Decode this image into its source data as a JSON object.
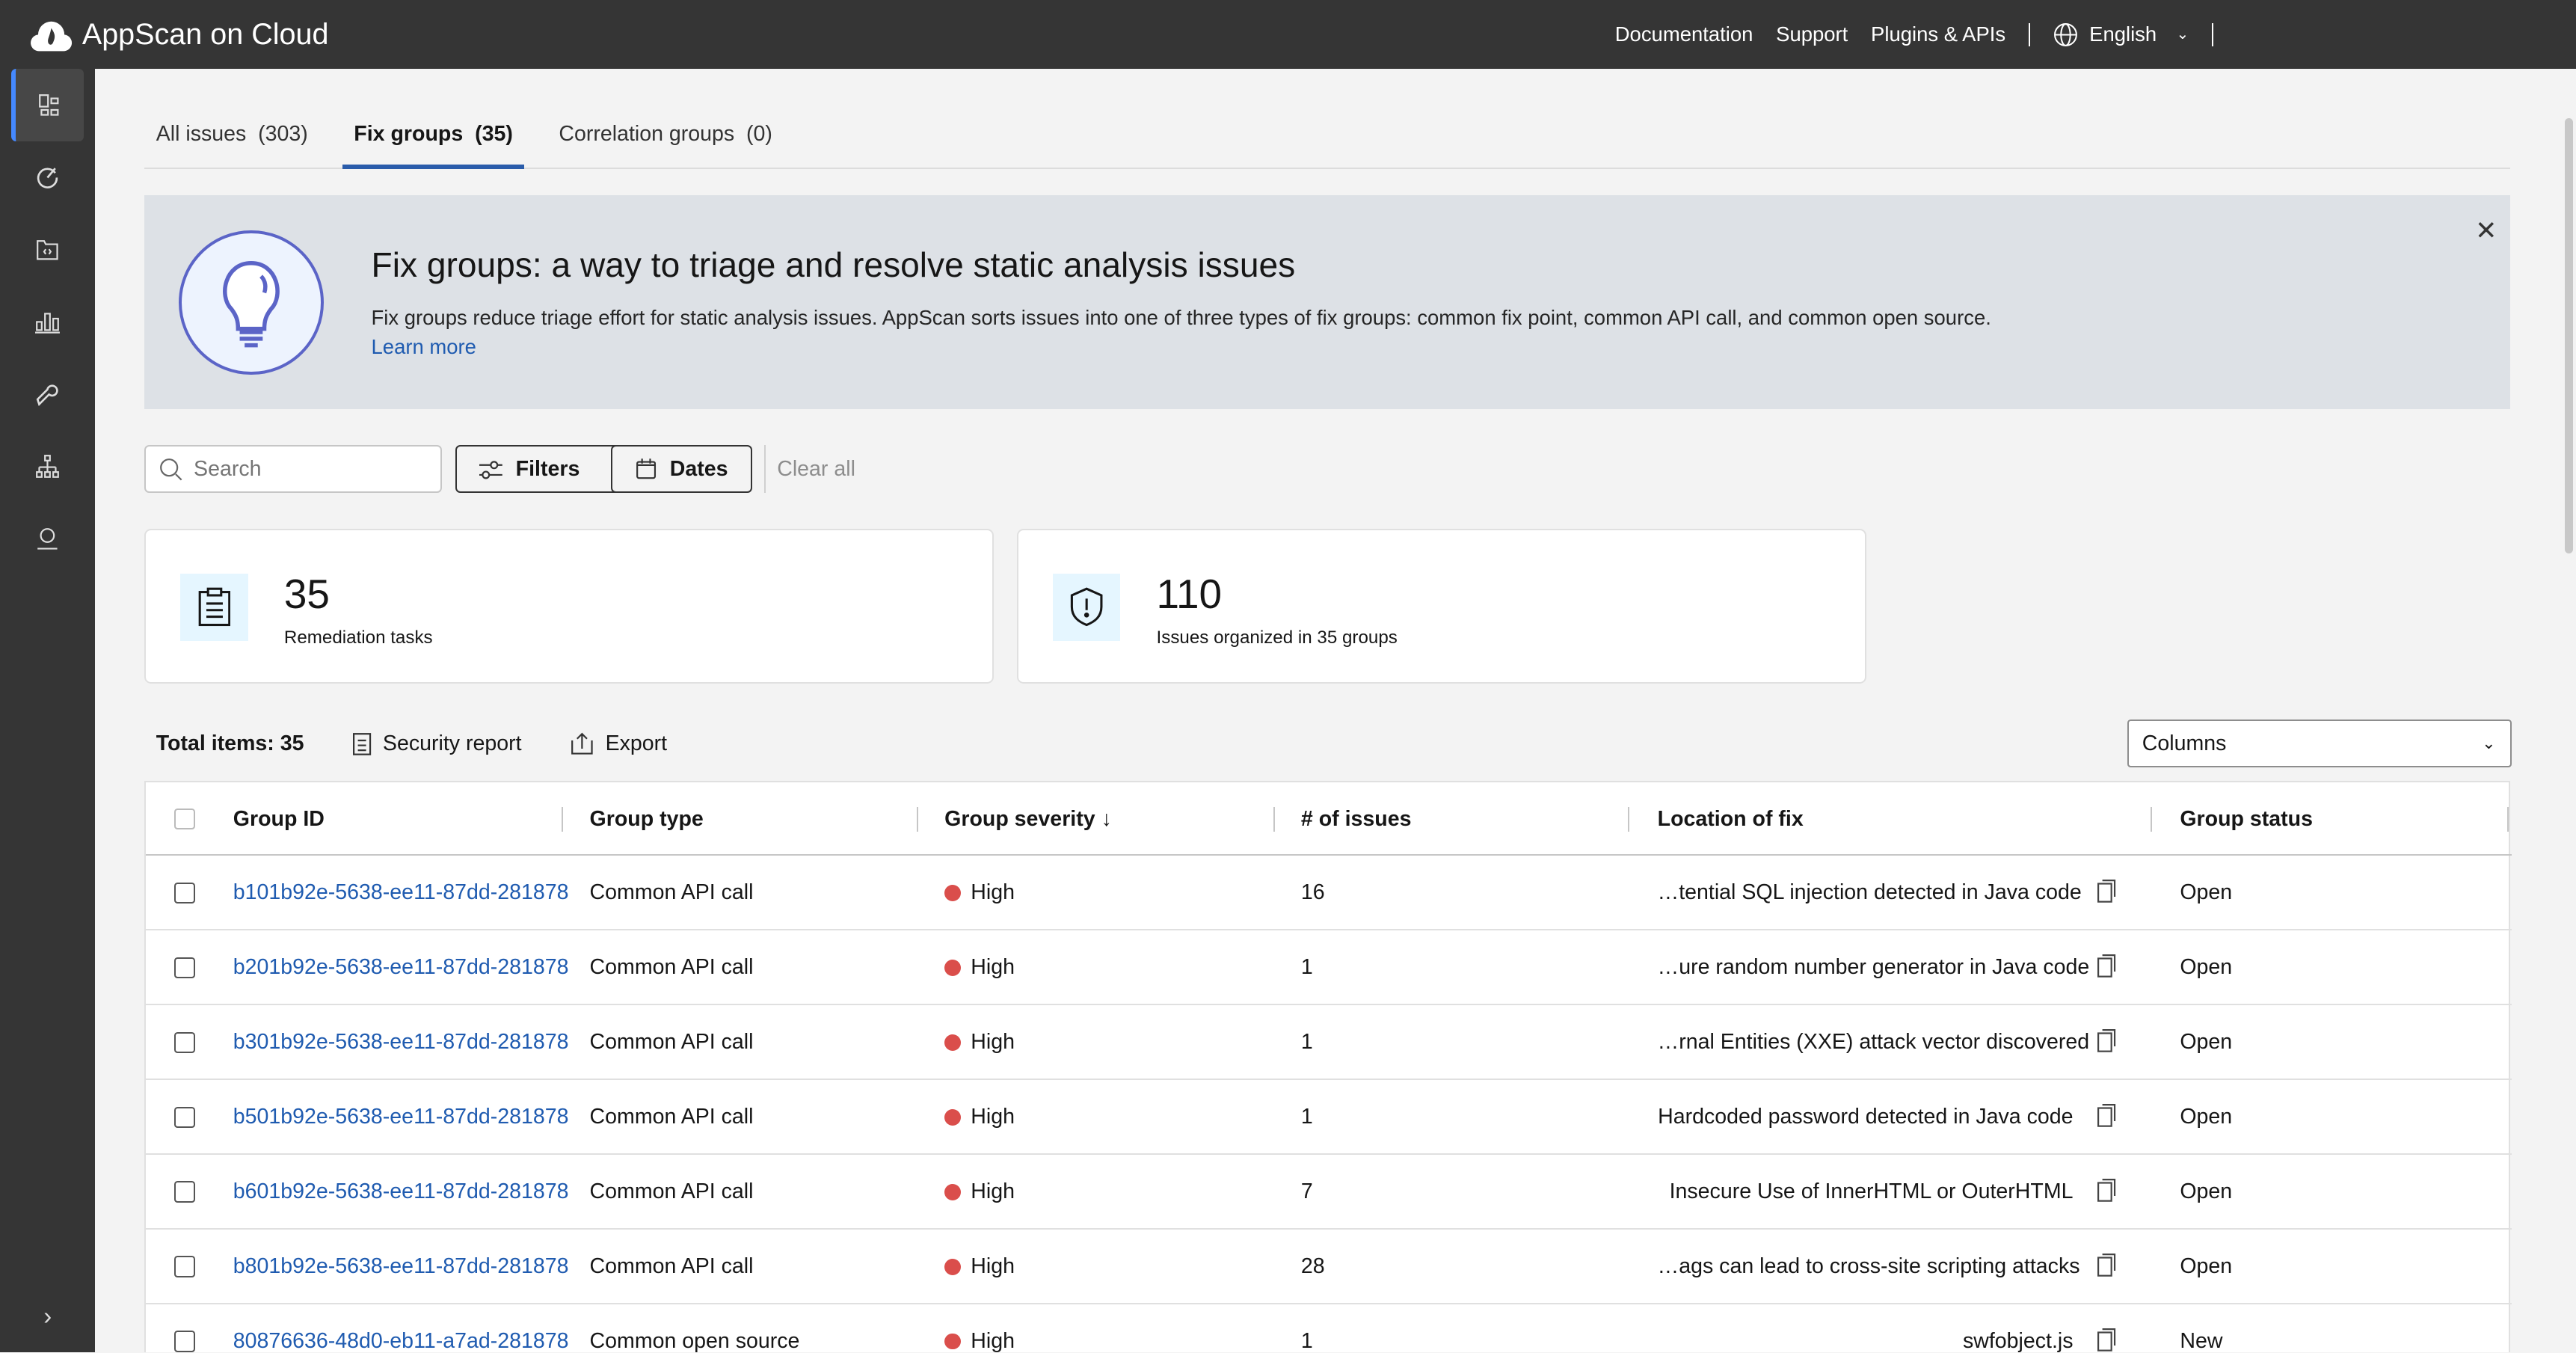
{
  "app": {
    "title": "AppScan on Cloud"
  },
  "topnav": {
    "documentation": "Documentation",
    "support": "Support",
    "plugins": "Plugins & APIs",
    "language": "English"
  },
  "sidebar": {
    "items": [
      "dashboard-icon",
      "scan-icon",
      "applications-icon",
      "reports-icon",
      "tools-icon",
      "organization-icon",
      "user-icon"
    ]
  },
  "tabs": [
    {
      "label": "All issues  (303)"
    },
    {
      "label": "Fix groups  (35)",
      "active": true
    },
    {
      "label": "Correlation groups  (0)"
    }
  ],
  "banner": {
    "title": "Fix groups: a way to triage and resolve static analysis issues",
    "text": "Fix groups reduce triage effort for static analysis issues. AppScan sorts issues into one of three types of fix groups: common fix point, common API call, and common open source.",
    "link": "Learn more"
  },
  "toolbar": {
    "search_placeholder": "Search",
    "filters": "Filters",
    "dates": "Dates",
    "clear_all": "Clear all"
  },
  "cards": [
    {
      "value": "35",
      "label": "Remediation tasks"
    },
    {
      "value": "110",
      "label": "Issues organized in 35 groups"
    }
  ],
  "table_toolbar": {
    "total": "Total items: 35",
    "security_report": "Security report",
    "export": "Export",
    "columns": "Columns"
  },
  "table": {
    "headers": [
      "Group ID",
      "Group type",
      "Group severity",
      "# of issues",
      "Location of fix",
      "Group status"
    ],
    "rows": [
      {
        "id": "b101b92e-5638-ee11-87dd-281878",
        "type": "Common API call",
        "severity": "High",
        "issues": "16",
        "location": "…tential SQL injection detected in Java code",
        "status": "Open"
      },
      {
        "id": "b201b92e-5638-ee11-87dd-281878",
        "type": "Common API call",
        "severity": "High",
        "issues": "1",
        "location": "…ure random number generator in Java code",
        "status": "Open"
      },
      {
        "id": "b301b92e-5638-ee11-87dd-281878",
        "type": "Common API call",
        "severity": "High",
        "issues": "1",
        "location": "…rnal Entities (XXE) attack vector discovered",
        "status": "Open"
      },
      {
        "id": "b501b92e-5638-ee11-87dd-281878",
        "type": "Common API call",
        "severity": "High",
        "issues": "1",
        "location": "Hardcoded password detected in Java code",
        "status": "Open"
      },
      {
        "id": "b601b92e-5638-ee11-87dd-281878",
        "type": "Common API call",
        "severity": "High",
        "issues": "7",
        "location": "Insecure Use of InnerHTML or OuterHTML",
        "status": "Open"
      },
      {
        "id": "b801b92e-5638-ee11-87dd-281878",
        "type": "Common API call",
        "severity": "High",
        "issues": "28",
        "location": "…ags can lead to cross-site scripting attacks",
        "status": "Open"
      },
      {
        "id": "80876636-48d0-eb11-a7ad-281878",
        "type": "Common open source",
        "severity": "High",
        "issues": "1",
        "location": "swfobject.js",
        "status": "New"
      }
    ]
  },
  "colors": {
    "header": "#353535",
    "accent": "#2a5caa",
    "link": "#1f5bb0",
    "high": "#da4e4b",
    "banner": "#dde1e6"
  }
}
